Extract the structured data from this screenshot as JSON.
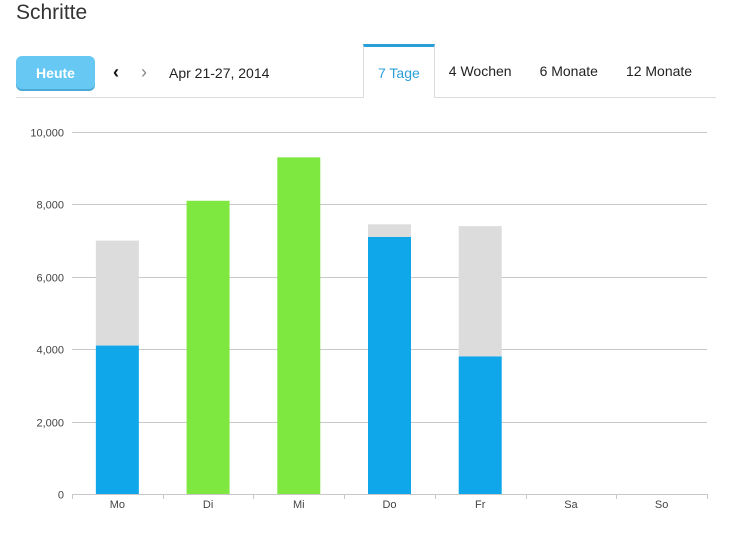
{
  "page": {
    "title": "Schritte"
  },
  "toolbar": {
    "today_label": "Heute",
    "prev_icon": "‹",
    "next_icon": "›",
    "date_range": "Apr 21-27, 2014"
  },
  "tabs": [
    {
      "label": "7 Tage",
      "active": true
    },
    {
      "label": "4 Wochen",
      "active": false
    },
    {
      "label": "6 Monate",
      "active": false
    },
    {
      "label": "12 Monate",
      "active": false
    }
  ],
  "chart_data": {
    "type": "bar",
    "categories": [
      "Mo",
      "Di",
      "Mi",
      "Do",
      "Fr",
      "Sa",
      "So"
    ],
    "steps": [
      4100,
      8100,
      9300,
      7100,
      3800,
      0,
      0
    ],
    "goal": [
      7000,
      8100,
      9300,
      7450,
      7400,
      0,
      0
    ],
    "goal_reached": [
      false,
      true,
      true,
      false,
      false,
      false,
      false
    ],
    "ylim": [
      0,
      10000
    ],
    "yticks": [
      "0",
      "2,000",
      "4,000",
      "6,000",
      "8,000",
      "10,000"
    ],
    "grid": true,
    "colors": {
      "steps": "#10a7ea",
      "goal_reached": "#7ee840",
      "remaining": "#dcdcdc",
      "grid": "#c8c8c8"
    }
  }
}
